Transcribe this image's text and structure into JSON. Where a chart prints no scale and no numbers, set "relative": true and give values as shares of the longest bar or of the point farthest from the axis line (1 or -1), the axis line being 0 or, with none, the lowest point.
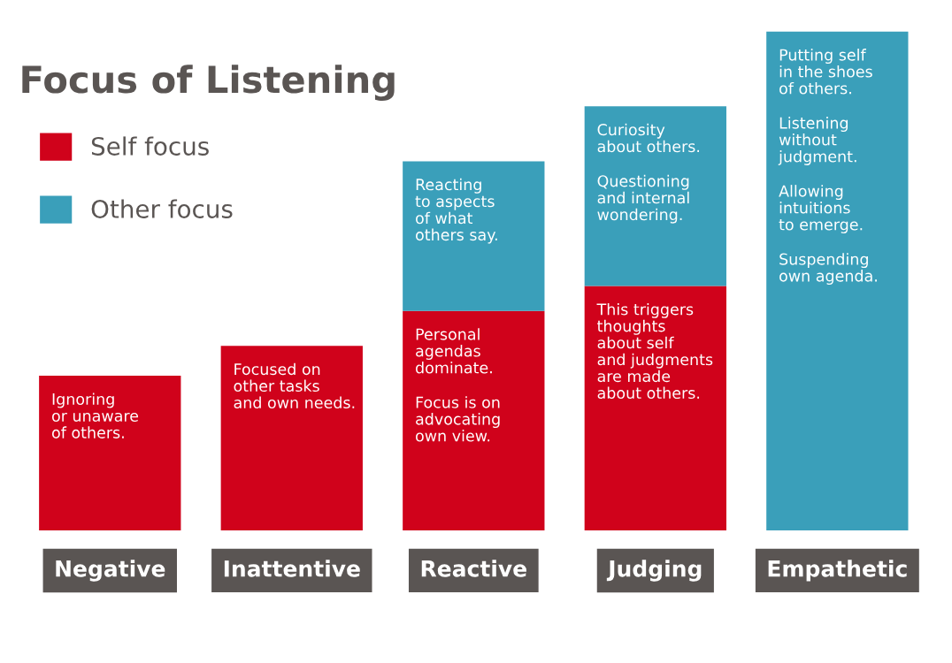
{
  "chart_data": {
    "type": "bar",
    "title": "Focus of Listening",
    "relative": true,
    "stacked": true,
    "legend": "top left",
    "grid": false,
    "categories": [
      "Negative",
      "Inattentive",
      "Reactive",
      "Judging",
      "Empathetic"
    ],
    "series": [
      {
        "name": "Self focus",
        "color": "#d0021b",
        "values": [
          0.31,
          0.37,
          0.44,
          0.49,
          null
        ]
      },
      {
        "name": "Other focus",
        "color": "#3a9fba",
        "values": [
          null,
          null,
          0.3,
          0.36,
          1
        ]
      }
    ],
    "annotations": [
      {
        "text": "Ignoring\nor unaware\nof others.",
        "x": "Negative",
        "y": 0.31
      },
      {
        "text": "Focused on\nother tasks\nand own needs.",
        "x": "Inattentive",
        "y": 0.37
      },
      {
        "text": "Personal\nagendas\ndominate.",
        "x": "Reactive",
        "y": 0.44
      },
      "Focus is on\nadvocating\nown view.",
      {
        "text": "Reacting\nto aspects\nof what\nothers say.",
        "x": "Reactive",
        "y": 0.74
      },
      {
        "text": "This triggers\nthoughts\nabout self\nand judgments\nare made\nabout others.",
        "x": "Judging",
        "y": 0.49
      },
      {
        "text": "Curiosity\nabout others.",
        "x": "Judging",
        "y": 0.85
      },
      "Questioning\nand internal\nwondering.",
      {
        "text": "Putting self\nin the shoes\nof others.",
        "x": "Empathetic",
        "y": 1
      },
      "Listening\nwithout\njudgment.",
      "Allowing\nintuitions\nto emerge.",
      "Suspending\nown agenda."
    ]
  }
}
